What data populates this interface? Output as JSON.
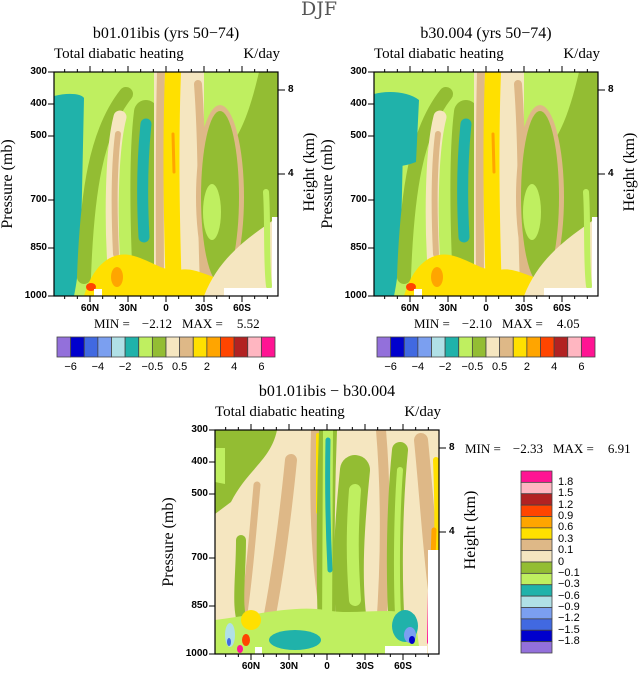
{
  "figure": {
    "title": "DJF"
  },
  "palette": [
    "#9370DB",
    "#0000CD",
    "#4169E1",
    "#7B9FF0",
    "#B0E0E6",
    "#20B2AA",
    "#BFEF60",
    "#93BD33",
    "#F5E6C0",
    "#DEB887",
    "#FFE000",
    "#FFA500",
    "#FF4500",
    "#B22222",
    "#FFB6C1",
    "#FF1493"
  ],
  "chart_data": [
    {
      "type": "contour",
      "title": "b01.01ibis (yrs 50−74)",
      "subtitle_left": "Total diabatic heating",
      "subtitle_right": "K/day",
      "ylabel": "Pressure (mb)",
      "y2label": "Height (km)",
      "y_ticks": [
        "300",
        "400",
        "500",
        "700",
        "850",
        "1000"
      ],
      "y2_ticks": [
        "8",
        "4"
      ],
      "x_ticks": [
        "60N",
        "30N",
        "0",
        "30S",
        "60S"
      ],
      "ylim": [
        1000,
        300
      ],
      "min_label": "MIN =",
      "min": "−2.12",
      "max_label": "MAX =",
      "max": "5.52",
      "levels": [
        -6,
        -5,
        -4,
        -3,
        -2,
        -1,
        -0.5,
        0,
        0.5,
        1,
        2,
        3,
        4,
        5,
        6
      ],
      "colorbar_labels": [
        "−6",
        "−4",
        "−2",
        "−0.5",
        "0.5",
        "2",
        "4",
        "6"
      ]
    },
    {
      "type": "contour",
      "title": "b30.004 (yrs 50−74)",
      "subtitle_left": "Total diabatic heating",
      "subtitle_right": "K/day",
      "ylabel": "Pressure (mb)",
      "y2label": "Height (km)",
      "y_ticks": [
        "300",
        "400",
        "500",
        "700",
        "850",
        "1000"
      ],
      "y2_ticks": [
        "8",
        "4"
      ],
      "x_ticks": [
        "60N",
        "30N",
        "0",
        "30S",
        "60S"
      ],
      "ylim": [
        1000,
        300
      ],
      "min_label": "MIN =",
      "min": "−2.10",
      "max_label": "MAX =",
      "max": "4.05",
      "levels": [
        -6,
        -5,
        -4,
        -3,
        -2,
        -1,
        -0.5,
        0,
        0.5,
        1,
        2,
        3,
        4,
        5,
        6
      ],
      "colorbar_labels": [
        "−6",
        "−4",
        "−2",
        "−0.5",
        "0.5",
        "2",
        "4",
        "6"
      ]
    },
    {
      "type": "contour",
      "title": "b01.01ibis − b30.004",
      "subtitle_left": "Total diabatic heating",
      "subtitle_right": "K/day",
      "ylabel": "Pressure (mb)",
      "y2label": "Height (km)",
      "y_ticks": [
        "300",
        "400",
        "500",
        "700",
        "850",
        "1000"
      ],
      "y2_ticks": [
        "8",
        "4"
      ],
      "x_ticks": [
        "60N",
        "30N",
        "0",
        "30S",
        "60S"
      ],
      "ylim": [
        1000,
        300
      ],
      "min_label": "MIN =",
      "min": "−2.33",
      "max_label": "MAX =",
      "max": "6.91",
      "levels": [
        -1.8,
        -1.5,
        -1.2,
        -0.9,
        -0.6,
        -0.3,
        -0.1,
        0,
        0.1,
        0.3,
        0.6,
        0.9,
        1.2,
        1.5,
        1.8
      ],
      "colorbar_labels": [
        "1.8",
        "1.5",
        "1.2",
        "0.9",
        "0.6",
        "0.3",
        "0.1",
        "0",
        "−0.1",
        "−0.3",
        "−0.6",
        "−0.9",
        "−1.2",
        "−1.5",
        "−1.8"
      ]
    }
  ]
}
